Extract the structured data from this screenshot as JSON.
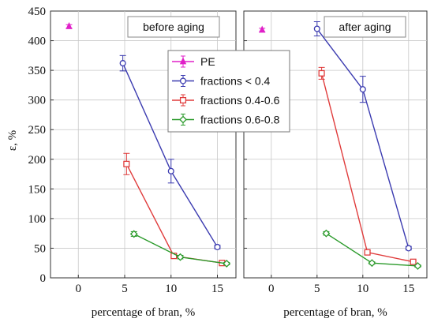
{
  "chart_data": {
    "type": "line",
    "ylabel": "ε, %",
    "ylim": [
      0,
      450
    ],
    "yticks": [
      0,
      50,
      100,
      150,
      200,
      250,
      300,
      350,
      400,
      450
    ],
    "legend": {
      "placement": "center, overlapping both panels",
      "entries": [
        {
          "label": "PE",
          "color": "#e020c8",
          "marker": "triangle"
        },
        {
          "label": "fractions    < 0.4",
          "color": "#3b3bb0",
          "marker": "circle"
        },
        {
          "label": "fractions 0.4-0.6",
          "color": "#e03c3c",
          "marker": "square"
        },
        {
          "label": "fractions 0.6-0.8",
          "color": "#2a9a2a",
          "marker": "diamond"
        }
      ]
    },
    "panels": [
      {
        "title": "before aging",
        "xlabel": "percentage of bran, %",
        "xlim": [
          -3,
          17
        ],
        "xticks": [
          0,
          5,
          10,
          15
        ],
        "series": [
          {
            "name": "PE",
            "color": "#e020c8",
            "marker": "triangle",
            "points": [
              [
                -1,
                424
              ]
            ],
            "errors": [
              3
            ]
          },
          {
            "name": "fractions    < 0.4",
            "color": "#3b3bb0",
            "marker": "circle",
            "points": [
              [
                4.8,
                362
              ],
              [
                10,
                180
              ],
              [
                15,
                52
              ]
            ],
            "errors": [
              13,
              20,
              3
            ]
          },
          {
            "name": "fractions 0.4-0.6",
            "color": "#e03c3c",
            "marker": "square",
            "points": [
              [
                5.2,
                192
              ],
              [
                10.3,
                37
              ],
              [
                15.5,
                25
              ]
            ],
            "errors": [
              18,
              3,
              2
            ]
          },
          {
            "name": "fractions 0.6-0.8",
            "color": "#2a9a2a",
            "marker": "diamond",
            "points": [
              [
                6,
                74
              ],
              [
                11,
                35
              ],
              [
                16,
                24
              ]
            ],
            "errors": [
              4,
              3,
              2
            ]
          }
        ]
      },
      {
        "title": "after aging",
        "xlabel": "percentage of bran, %",
        "xlim": [
          -3,
          17
        ],
        "xticks": [
          0,
          5,
          10,
          15
        ],
        "series": [
          {
            "name": "PE",
            "color": "#e020c8",
            "marker": "triangle",
            "points": [
              [
                -1,
                418
              ]
            ],
            "errors": [
              3
            ]
          },
          {
            "name": "fractions    < 0.4",
            "color": "#3b3bb0",
            "marker": "circle",
            "points": [
              [
                5,
                420
              ],
              [
                10,
                318
              ],
              [
                15,
                50
              ]
            ],
            "errors": [
              12,
              22,
              3
            ]
          },
          {
            "name": "fractions 0.4-0.6",
            "color": "#e03c3c",
            "marker": "square",
            "points": [
              [
                5.5,
                345
              ],
              [
                10.5,
                43
              ],
              [
                15.5,
                27
              ]
            ],
            "errors": [
              10,
              3,
              2
            ]
          },
          {
            "name": "fractions 0.6-0.8",
            "color": "#2a9a2a",
            "marker": "diamond",
            "points": [
              [
                6,
                75
              ],
              [
                11,
                25
              ],
              [
                16,
                20
              ]
            ],
            "errors": [
              3,
              2,
              2
            ]
          }
        ]
      }
    ]
  }
}
